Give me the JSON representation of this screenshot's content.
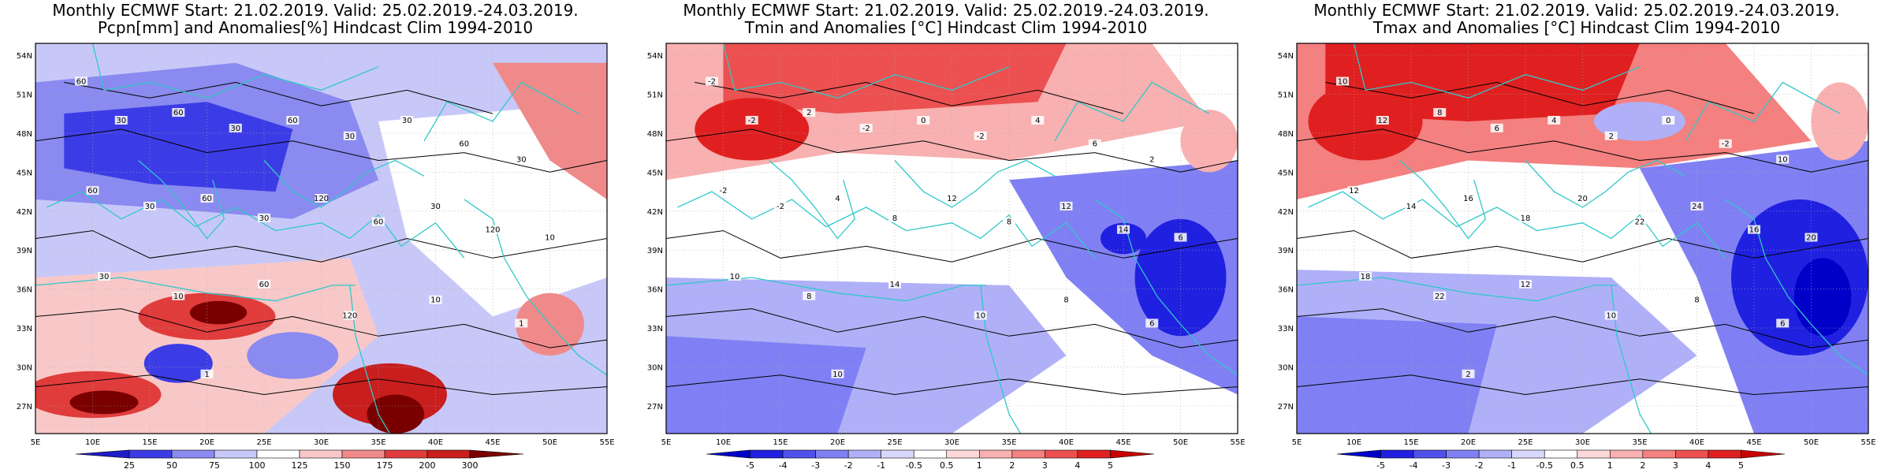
{
  "panels": [
    {
      "title_line1": "Monthly ECMWF Start: 21.02.2019. Valid: 25.02.2019.-24.03.2019.",
      "title_line2": "Pcpn[mm] and Anomalies[%] Hindcast Clim 1994-2010",
      "colorbar_labels": [
        "25",
        "50",
        "75",
        "100",
        "125",
        "150",
        "175",
        "200",
        "300"
      ],
      "colorbar_colors": [
        "#1e1ec8",
        "#3c3ce6",
        "#8a8af0",
        "#c8c8f8",
        "#ffffff",
        "#f8c8c8",
        "#f08a8a",
        "#e03c3c",
        "#c81e1e",
        "#7a0000"
      ],
      "contour_labels": [
        "60",
        "30",
        "60",
        "30",
        "60",
        "30",
        "30",
        "60",
        "30",
        "60",
        "30",
        "60",
        "30",
        "120",
        "60",
        "30",
        "120",
        "10",
        "30",
        "10",
        "60",
        "120",
        "10",
        "1",
        "1"
      ]
    },
    {
      "title_line1": "Monthly ECMWF Start: 21.02.2019. Valid: 25.02.2019.-24.03.2019.",
      "title_line2": "Tmin and Anomalies [°C] Hindcast Clim 1994-2010",
      "colorbar_labels": [
        "-5",
        "-4",
        "-3",
        "-2",
        "-1",
        "-0.5",
        "0.5",
        "1",
        "2",
        "3",
        "4",
        "5"
      ],
      "colorbar_colors": [
        "#0000c8",
        "#2020e0",
        "#5050ec",
        "#8080f4",
        "#b0b0f8",
        "#d8d8fc",
        "#ffffff",
        "#fcd8d8",
        "#f8b0b0",
        "#f48080",
        "#ec5050",
        "#e02020",
        "#c80000"
      ],
      "contour_labels": [
        "-2",
        "-2",
        "2",
        "-2",
        "0",
        "-2",
        "4",
        "6",
        "2",
        "-2",
        "-2",
        "4",
        "8",
        "12",
        "8",
        "12",
        "14",
        "6",
        "10",
        "8",
        "14",
        "10",
        "8",
        "6",
        "10"
      ]
    },
    {
      "title_line1": "Monthly ECMWF Start: 21.02.2019. Valid: 25.02.2019.-24.03.2019.",
      "title_line2": "Tmax and Anomalies [°C] Hindcast Clim 1994-2010",
      "colorbar_labels": [
        "-5",
        "-4",
        "-3",
        "-2",
        "-1",
        "-0.5",
        "0.5",
        "1",
        "2",
        "3",
        "4",
        "5"
      ],
      "colorbar_colors": [
        "#0000c8",
        "#2020e0",
        "#5050ec",
        "#8080f4",
        "#b0b0f8",
        "#d8d8fc",
        "#ffffff",
        "#fcd8d8",
        "#f8b0b0",
        "#f48080",
        "#ec5050",
        "#e02020",
        "#c80000"
      ],
      "contour_labels": [
        "10",
        "12",
        "8",
        "6",
        "4",
        "2",
        "0",
        "-2",
        "10",
        "12",
        "14",
        "16",
        "18",
        "20",
        "22",
        "24",
        "16",
        "20",
        "18",
        "22",
        "12",
        "10",
        "8",
        "6",
        "2"
      ]
    }
  ],
  "axes": {
    "lat_labels": [
      "54N",
      "51N",
      "48N",
      "45N",
      "42N",
      "39N",
      "36N",
      "33N",
      "30N",
      "27N"
    ],
    "lon_labels": [
      "5E",
      "10E",
      "15E",
      "20E",
      "25E",
      "30E",
      "35E",
      "40E",
      "45E",
      "50E",
      "55E"
    ]
  },
  "colors": {
    "coastline": "#30c8c8",
    "contour": "#000000"
  }
}
